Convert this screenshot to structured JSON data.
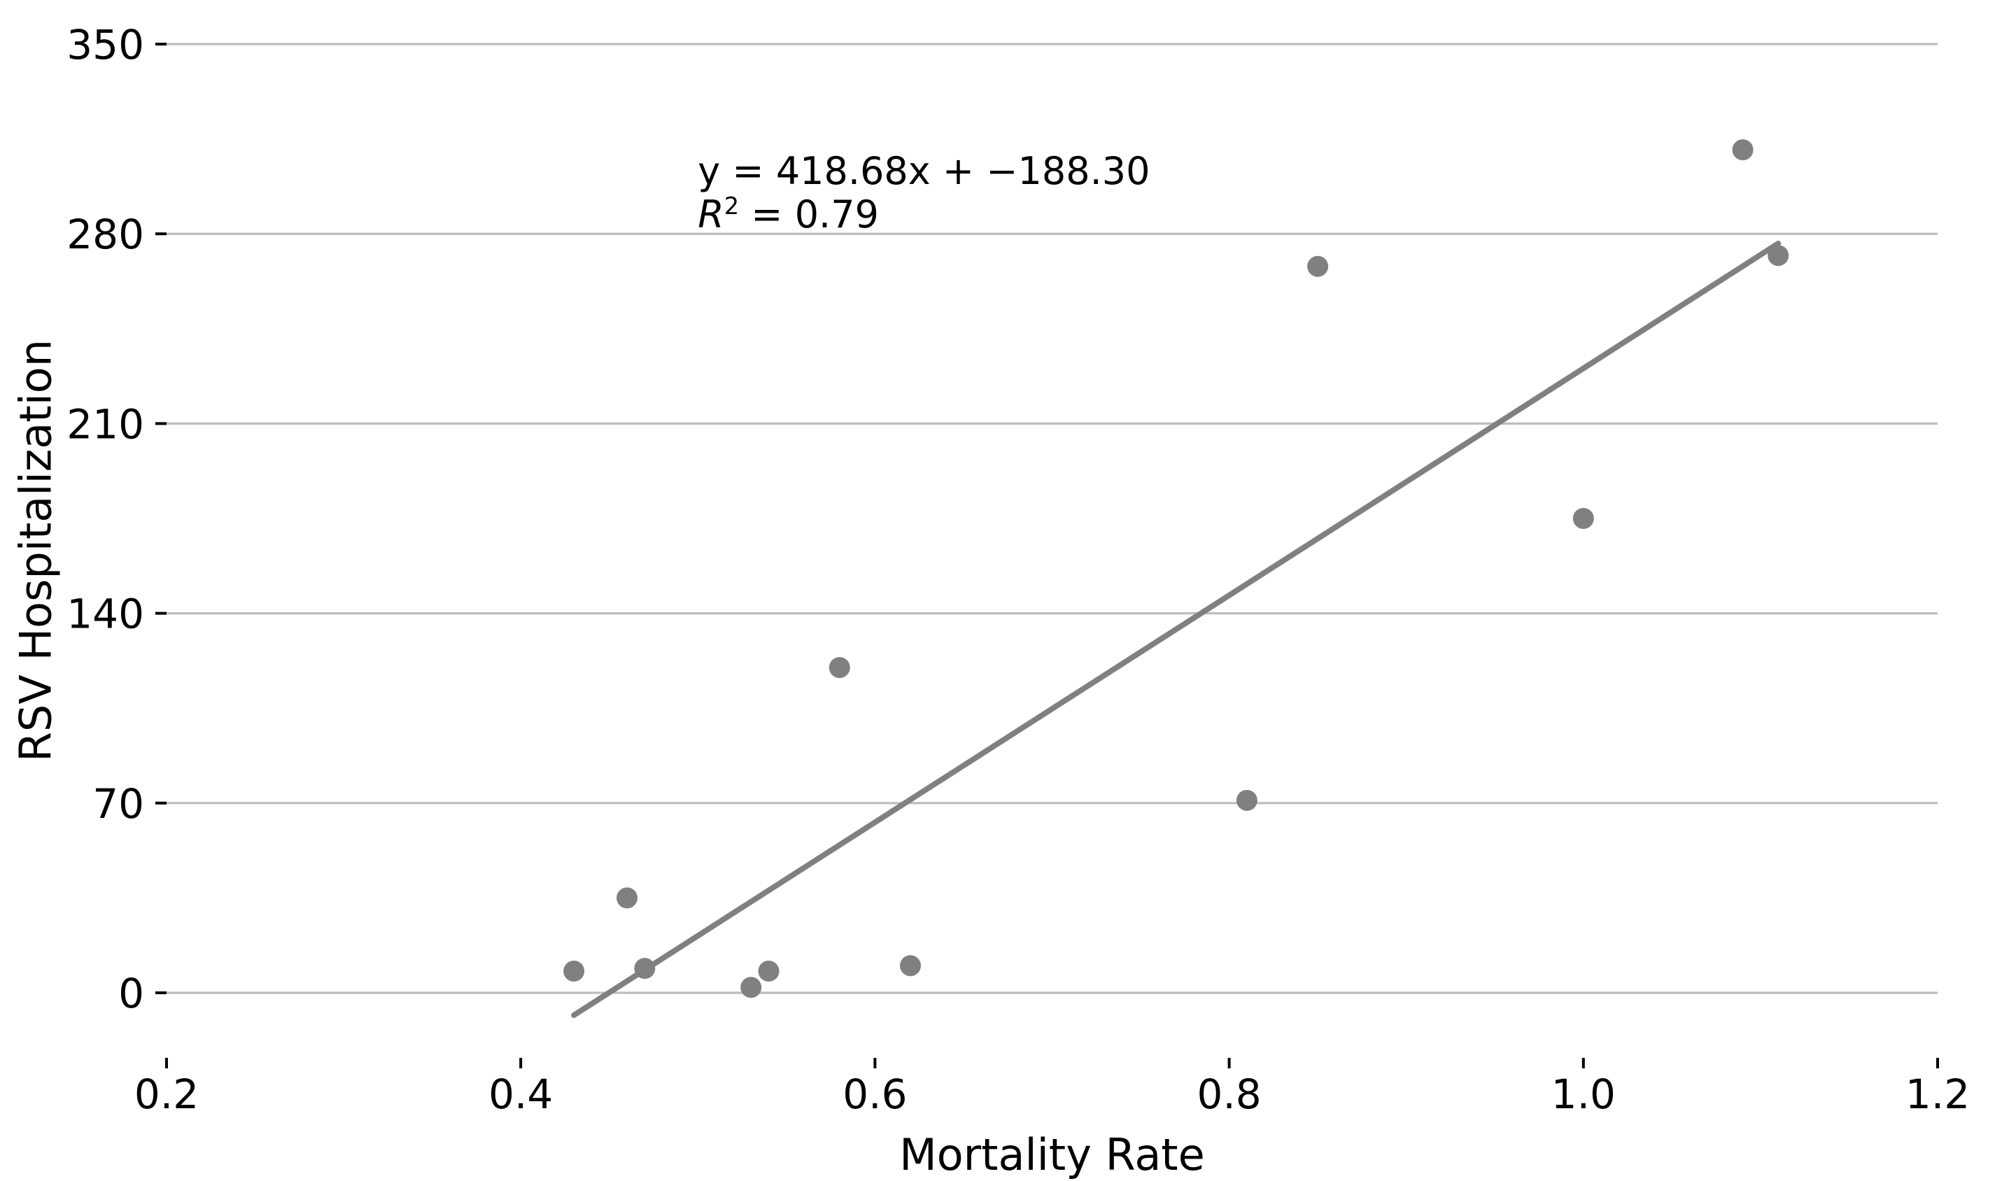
{
  "chart_data": {
    "type": "scatter",
    "title": "",
    "xlabel": "Mortality Rate",
    "ylabel": "RSV Hospitalization",
    "xlim": [
      0.2,
      1.2
    ],
    "ylim": [
      -24,
      350
    ],
    "xtick_values": [
      0.2,
      0.4,
      0.6,
      0.8,
      1.0,
      1.2
    ],
    "xtick_labels": [
      "0.2",
      "0.4",
      "0.6",
      "0.8",
      "1.0",
      "1.2"
    ],
    "ytick_values": [
      0,
      70,
      140,
      210,
      280,
      350
    ],
    "ytick_labels": [
      "0",
      "70",
      "140",
      "210",
      "280",
      "350"
    ],
    "grid": "horizontal-only",
    "legend": "none",
    "points": [
      {
        "x": 0.43,
        "y": 8
      },
      {
        "x": 0.46,
        "y": 35
      },
      {
        "x": 0.47,
        "y": 9
      },
      {
        "x": 0.53,
        "y": 2
      },
      {
        "x": 0.54,
        "y": 8
      },
      {
        "x": 0.58,
        "y": 120
      },
      {
        "x": 0.62,
        "y": 10
      },
      {
        "x": 0.81,
        "y": 71
      },
      {
        "x": 0.85,
        "y": 268
      },
      {
        "x": 1.0,
        "y": 175
      },
      {
        "x": 1.09,
        "y": 311
      },
      {
        "x": 1.11,
        "y": 272
      }
    ],
    "trendline": {
      "slope": 418.68,
      "intercept": -188.3,
      "r_squared": 0.79,
      "x_start": 0.43,
      "x_end": 1.11
    },
    "annotation": {
      "equation": "y = 418.68x + −188.30",
      "r_symbol": "R",
      "r_exponent": "2",
      "r_value": " = 0.79",
      "x": 0.5,
      "y": 311
    },
    "colors": {
      "marker": "#808080",
      "trend": "#808080",
      "grid": "#bdbdbd",
      "tick": "#000000",
      "text": "#000000",
      "background": "#ffffff"
    },
    "marker_radius_px": 15
  }
}
